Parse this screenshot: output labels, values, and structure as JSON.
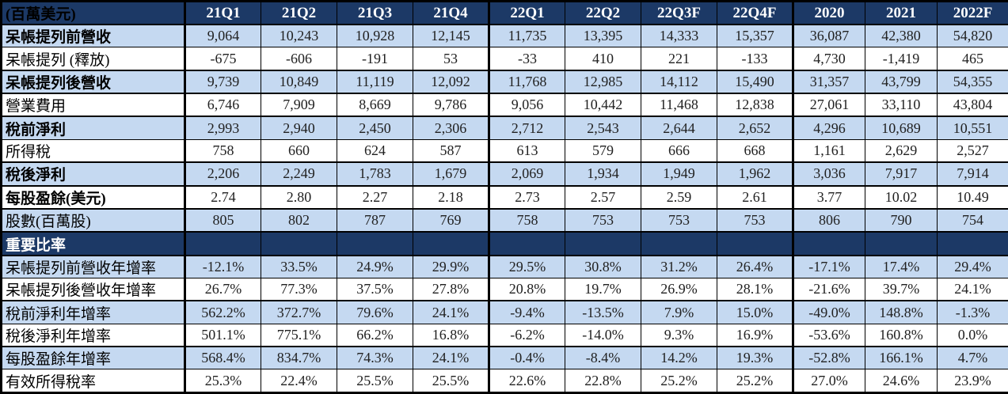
{
  "colors": {
    "header_bg": "#1C3966",
    "section_bg": "#1C3966",
    "blue_row_bg": "#C5D9F1",
    "white_row_bg": "#FFFFFF",
    "border": "#000000",
    "header_text": "#FFFFFF",
    "value_text": "#212121"
  },
  "chart_data": {
    "type": "table",
    "unit_label": "(百萬美元)",
    "columns": [
      "21Q1",
      "21Q2",
      "21Q3",
      "21Q4",
      "22Q1",
      "22Q2",
      "22Q3F",
      "22Q4F",
      "2020",
      "2021",
      "2022F"
    ],
    "rows": [
      {
        "label": "呆帳提列前營收",
        "bold": true,
        "shade": "blue",
        "thin_bottom": true,
        "values": [
          "9,064",
          "10,243",
          "10,928",
          "12,145",
          "11,735",
          "13,395",
          "14,333",
          "15,357",
          "36,087",
          "42,380",
          "54,820"
        ]
      },
      {
        "label": "呆帳提列 (釋放)",
        "bold": false,
        "shade": "white",
        "thin_bottom": false,
        "values": [
          "-675",
          "-606",
          "-191",
          "53",
          "-33",
          "410",
          "221",
          "-133",
          "4,730",
          "-1,419",
          "465"
        ]
      },
      {
        "label": "呆帳提列後營收",
        "bold": true,
        "shade": "blue",
        "thin_bottom": false,
        "values": [
          "9,739",
          "10,849",
          "11,119",
          "12,092",
          "11,768",
          "12,985",
          "14,112",
          "15,490",
          "31,357",
          "43,799",
          "54,355"
        ]
      },
      {
        "label": "營業費用",
        "bold": false,
        "shade": "white",
        "thin_bottom": false,
        "values": [
          "6,746",
          "7,909",
          "8,669",
          "9,786",
          "9,056",
          "10,442",
          "11,468",
          "12,838",
          "27,061",
          "33,110",
          "43,804"
        ]
      },
      {
        "label": "稅前淨利",
        "bold": true,
        "shade": "blue",
        "thin_bottom": true,
        "values": [
          "2,993",
          "2,940",
          "2,450",
          "2,306",
          "2,712",
          "2,543",
          "2,644",
          "2,652",
          "4,296",
          "10,689",
          "10,551"
        ]
      },
      {
        "label": "所得稅",
        "bold": false,
        "shade": "white",
        "thin_bottom": false,
        "values": [
          "758",
          "660",
          "624",
          "587",
          "613",
          "579",
          "666",
          "668",
          "1,161",
          "2,629",
          "2,527"
        ]
      },
      {
        "label": "稅後淨利",
        "bold": true,
        "shade": "blue",
        "thin_bottom": false,
        "values": [
          "2,206",
          "2,249",
          "1,783",
          "1,679",
          "2,069",
          "1,934",
          "1,949",
          "1,962",
          "3,036",
          "7,917",
          "7,914"
        ]
      },
      {
        "label": "每股盈餘(美元)",
        "bold": true,
        "shade": "white",
        "thin_bottom": false,
        "values": [
          "2.74",
          "2.80",
          "2.27",
          "2.18",
          "2.73",
          "2.57",
          "2.59",
          "2.61",
          "3.77",
          "10.02",
          "10.49"
        ]
      },
      {
        "label": "股數(百萬股)",
        "bold": false,
        "shade": "blue",
        "thin_bottom": false,
        "values": [
          "805",
          "802",
          "787",
          "769",
          "758",
          "753",
          "753",
          "753",
          "806",
          "790",
          "754"
        ]
      },
      {
        "label": "重要比率",
        "section": true,
        "bold": true,
        "shade": "section",
        "thin_bottom": false,
        "values": [
          "",
          "",
          "",
          "",
          "",
          "",
          "",
          "",
          "",
          "",
          ""
        ]
      },
      {
        "label": "呆帳提列前營收年增率",
        "bold": false,
        "shade": "blue",
        "thin_bottom": true,
        "values": [
          "-12.1%",
          "33.5%",
          "24.9%",
          "29.9%",
          "29.5%",
          "30.8%",
          "31.2%",
          "26.4%",
          "-17.1%",
          "17.4%",
          "29.4%"
        ]
      },
      {
        "label": "呆帳提列後營收年增率",
        "bold": false,
        "shade": "white",
        "thin_bottom": false,
        "values": [
          "26.7%",
          "77.3%",
          "37.5%",
          "27.8%",
          "20.8%",
          "19.7%",
          "26.9%",
          "28.1%",
          "-21.6%",
          "39.7%",
          "24.1%"
        ]
      },
      {
        "label": "稅前淨利年增率",
        "bold": false,
        "shade": "blue",
        "thin_bottom": true,
        "values": [
          "562.2%",
          "372.7%",
          "79.6%",
          "24.1%",
          "-9.4%",
          "-13.5%",
          "7.9%",
          "15.0%",
          "-49.0%",
          "148.8%",
          "-1.3%"
        ]
      },
      {
        "label": "稅後淨利年增率",
        "bold": false,
        "shade": "white",
        "thin_bottom": false,
        "values": [
          "501.1%",
          "775.1%",
          "66.2%",
          "16.8%",
          "-6.2%",
          "-14.0%",
          "9.3%",
          "16.9%",
          "-53.6%",
          "160.8%",
          "0.0%"
        ]
      },
      {
        "label": "每股盈餘年增率",
        "bold": false,
        "shade": "blue",
        "thin_bottom": true,
        "values": [
          "568.4%",
          "834.7%",
          "74.3%",
          "24.1%",
          "-0.4%",
          "-8.4%",
          "14.2%",
          "19.3%",
          "-52.8%",
          "166.1%",
          "4.7%"
        ]
      },
      {
        "label": "有效所得稅率",
        "bold": false,
        "shade": "white",
        "thin_bottom": false,
        "values": [
          "25.3%",
          "22.4%",
          "25.5%",
          "25.5%",
          "22.6%",
          "22.8%",
          "25.2%",
          "25.2%",
          "27.0%",
          "24.6%",
          "23.9%"
        ]
      }
    ],
    "layout": {
      "label_col_width": 232,
      "quarter_col_width": 96,
      "year_col_width": 91,
      "group_separator_after_columns": [
        3,
        7
      ]
    }
  }
}
